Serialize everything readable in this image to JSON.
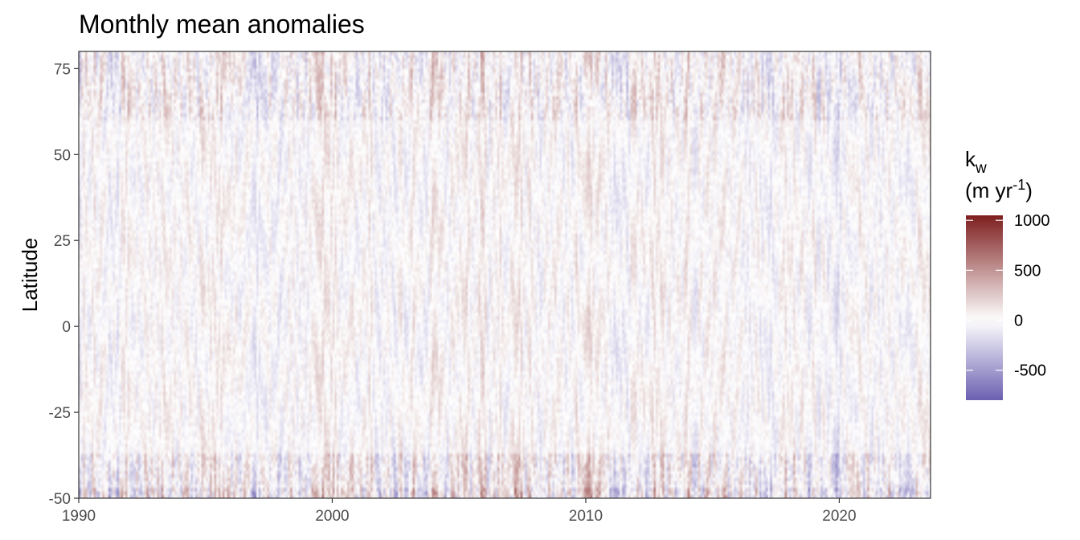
{
  "chart_data": {
    "type": "heatmap",
    "title": "Monthly mean anomalies",
    "xlabel": "",
    "ylabel": "Latitude",
    "xlim": [
      1990,
      2023.6
    ],
    "ylim": [
      -50,
      80
    ],
    "x_ticks": [
      1990,
      2000,
      2010,
      2020
    ],
    "x_tick_labels": [
      "1990",
      "2000",
      "2010",
      "2020"
    ],
    "y_ticks": [
      75,
      50,
      25,
      0,
      -25,
      -50
    ],
    "y_tick_labels": [
      "75",
      "50",
      "25",
      "0",
      "-25",
      "-50"
    ],
    "grid": false,
    "legend": {
      "title_main": "k",
      "title_sub": "w",
      "title_unit_prefix": "(m yr",
      "title_unit_sup": "-1",
      "title_unit_suffix": ")",
      "placement": "right",
      "range": [
        -800,
        1050
      ],
      "ticks": [
        1000,
        500,
        0,
        -500
      ],
      "tick_labels": [
        "1000",
        "500",
        "0",
        "-500"
      ],
      "low_color": "#6a5fb0",
      "mid_color": "#ffffff",
      "high_color": "#7e1e1e"
    },
    "z_range": [
      -800,
      1050
    ],
    "x_resolution": "monthly",
    "y_resolution_deg": 1,
    "notes_band_latitudes": [
      -37,
      -47
    ]
  }
}
